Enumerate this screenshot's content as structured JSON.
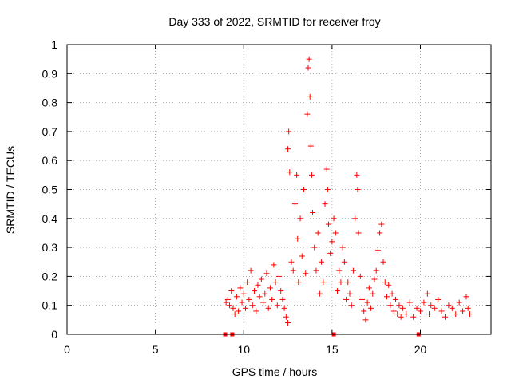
{
  "chart_data": {
    "type": "scatter",
    "title": "Day 333 of 2022, SRMTID for receiver froy",
    "xlabel": "GPS time / hours",
    "ylabel": "SRMTID / TECUs",
    "xlim": [
      0,
      24
    ],
    "ylim": [
      0,
      1
    ],
    "xticks": [
      0,
      5,
      10,
      15,
      20
    ],
    "xtick_labels": [
      "0",
      "5",
      "10",
      "15",
      "20"
    ],
    "yticks": [
      0,
      0.1,
      0.2,
      0.3,
      0.4,
      0.5,
      0.6,
      0.7,
      0.8,
      0.9,
      1
    ],
    "ytick_labels": [
      "0",
      "0.1",
      "0.2",
      "0.3",
      "0.4",
      "0.5",
      "0.6",
      "0.7",
      "0.8",
      "0.9",
      "1"
    ],
    "grid": true,
    "marker_color": "#ff0000",
    "marker": "+",
    "series": [
      {
        "name": "SRMTID",
        "data_gaps_at_zero": [
          8.95,
          9.35,
          15.1,
          19.9
        ],
        "points": [
          [
            9.0,
            0.11
          ],
          [
            9.1,
            0.12
          ],
          [
            9.2,
            0.1
          ],
          [
            9.3,
            0.15
          ],
          [
            9.4,
            0.09
          ],
          [
            9.5,
            0.07
          ],
          [
            9.6,
            0.13
          ],
          [
            9.7,
            0.08
          ],
          [
            9.8,
            0.16
          ],
          [
            9.9,
            0.11
          ],
          [
            10.0,
            0.14
          ],
          [
            10.1,
            0.09
          ],
          [
            10.2,
            0.18
          ],
          [
            10.3,
            0.12
          ],
          [
            10.4,
            0.22
          ],
          [
            10.5,
            0.1
          ],
          [
            10.6,
            0.15
          ],
          [
            10.7,
            0.08
          ],
          [
            10.8,
            0.17
          ],
          [
            10.9,
            0.13
          ],
          [
            11.0,
            0.19
          ],
          [
            11.1,
            0.11
          ],
          [
            11.2,
            0.14
          ],
          [
            11.3,
            0.21
          ],
          [
            11.4,
            0.09
          ],
          [
            11.5,
            0.16
          ],
          [
            11.6,
            0.12
          ],
          [
            11.7,
            0.24
          ],
          [
            11.8,
            0.18
          ],
          [
            11.9,
            0.1
          ],
          [
            12.0,
            0.2
          ],
          [
            12.1,
            0.15
          ],
          [
            12.2,
            0.12
          ],
          [
            12.3,
            0.09
          ],
          [
            12.4,
            0.06
          ],
          [
            12.5,
            0.04
          ],
          [
            12.5,
            0.64
          ],
          [
            12.55,
            0.7
          ],
          [
            12.6,
            0.56
          ],
          [
            12.7,
            0.25
          ],
          [
            12.8,
            0.22
          ],
          [
            12.9,
            0.45
          ],
          [
            13.0,
            0.55
          ],
          [
            13.05,
            0.33
          ],
          [
            13.1,
            0.18
          ],
          [
            13.2,
            0.4
          ],
          [
            13.3,
            0.27
          ],
          [
            13.4,
            0.5
          ],
          [
            13.5,
            0.21
          ],
          [
            13.6,
            0.76
          ],
          [
            13.65,
            0.92
          ],
          [
            13.7,
            0.95
          ],
          [
            13.75,
            0.82
          ],
          [
            13.8,
            0.65
          ],
          [
            13.85,
            0.55
          ],
          [
            13.9,
            0.42
          ],
          [
            14.0,
            0.3
          ],
          [
            14.1,
            0.22
          ],
          [
            14.2,
            0.35
          ],
          [
            14.3,
            0.14
          ],
          [
            14.4,
            0.25
          ],
          [
            14.5,
            0.18
          ],
          [
            14.6,
            0.45
          ],
          [
            14.7,
            0.57
          ],
          [
            14.75,
            0.5
          ],
          [
            14.8,
            0.38
          ],
          [
            14.9,
            0.28
          ],
          [
            15.0,
            0.32
          ],
          [
            15.1,
            0.4
          ],
          [
            15.2,
            0.35
          ],
          [
            15.3,
            0.15
          ],
          [
            15.4,
            0.22
          ],
          [
            15.5,
            0.18
          ],
          [
            15.6,
            0.3
          ],
          [
            15.7,
            0.25
          ],
          [
            15.8,
            0.12
          ],
          [
            15.9,
            0.18
          ],
          [
            16.0,
            0.14
          ],
          [
            16.1,
            0.1
          ],
          [
            16.2,
            0.22
          ],
          [
            16.3,
            0.4
          ],
          [
            16.4,
            0.55
          ],
          [
            16.45,
            0.5
          ],
          [
            16.5,
            0.35
          ],
          [
            16.6,
            0.2
          ],
          [
            16.7,
            0.12
          ],
          [
            16.8,
            0.08
          ],
          [
            16.9,
            0.05
          ],
          [
            17.0,
            0.11
          ],
          [
            17.1,
            0.16
          ],
          [
            17.2,
            0.09
          ],
          [
            17.3,
            0.14
          ],
          [
            17.4,
            0.19
          ],
          [
            17.5,
            0.22
          ],
          [
            17.6,
            0.29
          ],
          [
            17.7,
            0.35
          ],
          [
            17.8,
            0.38
          ],
          [
            17.9,
            0.25
          ],
          [
            18.0,
            0.18
          ],
          [
            18.1,
            0.13
          ],
          [
            18.2,
            0.17
          ],
          [
            18.3,
            0.1
          ],
          [
            18.4,
            0.14
          ],
          [
            18.5,
            0.08
          ],
          [
            18.6,
            0.12
          ],
          [
            18.7,
            0.07
          ],
          [
            18.8,
            0.1
          ],
          [
            18.9,
            0.06
          ],
          [
            19.0,
            0.09
          ],
          [
            19.2,
            0.07
          ],
          [
            19.4,
            0.11
          ],
          [
            19.6,
            0.06
          ],
          [
            19.8,
            0.09
          ],
          [
            20.0,
            0.08
          ],
          [
            20.2,
            0.11
          ],
          [
            20.4,
            0.14
          ],
          [
            20.5,
            0.07
          ],
          [
            20.6,
            0.1
          ],
          [
            20.8,
            0.09
          ],
          [
            21.0,
            0.12
          ],
          [
            21.2,
            0.08
          ],
          [
            21.4,
            0.06
          ],
          [
            21.6,
            0.1
          ],
          [
            21.8,
            0.09
          ],
          [
            22.0,
            0.07
          ],
          [
            22.2,
            0.11
          ],
          [
            22.4,
            0.08
          ],
          [
            22.6,
            0.13
          ],
          [
            22.7,
            0.09
          ],
          [
            22.8,
            0.07
          ]
        ]
      }
    ]
  }
}
